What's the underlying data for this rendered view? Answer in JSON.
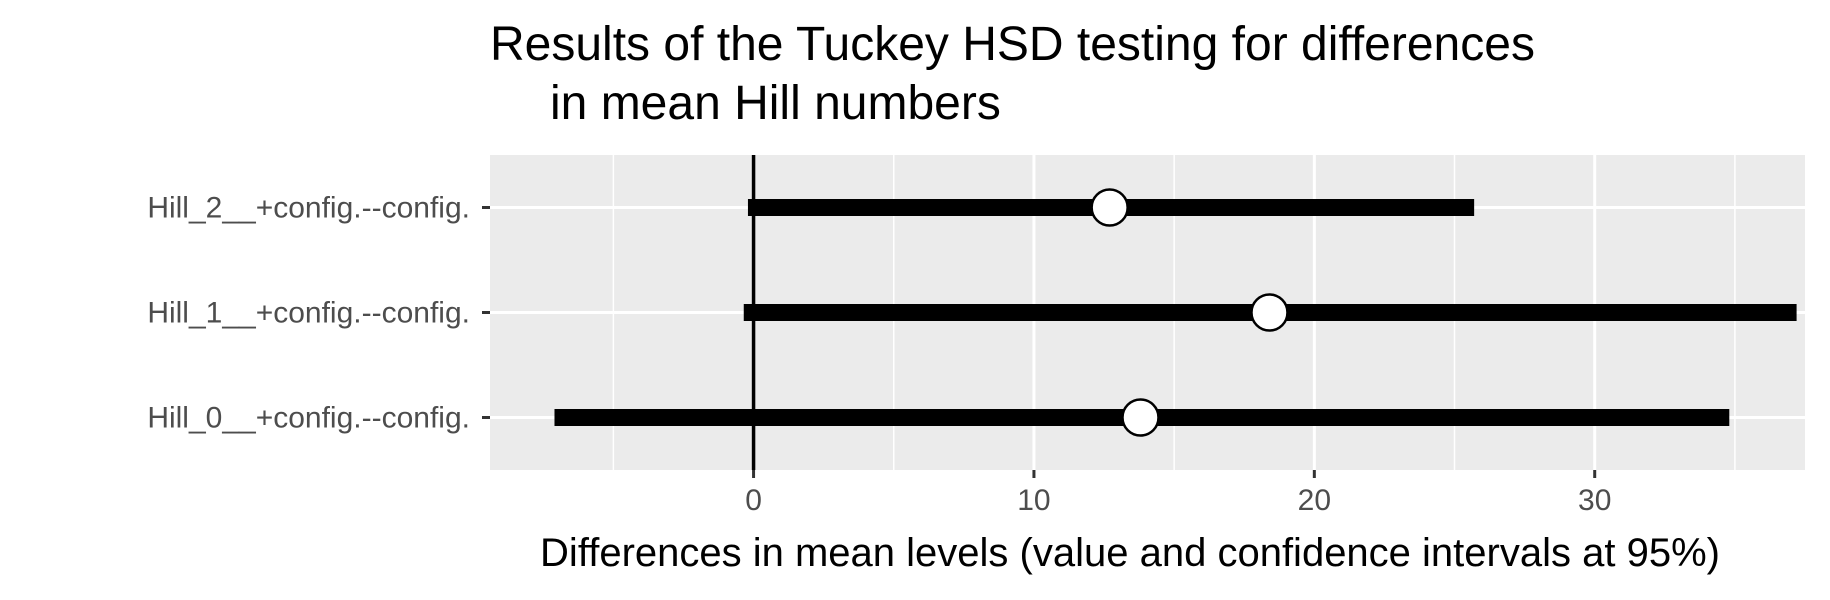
{
  "chart_data": {
    "type": "errorbar",
    "title": [
      "Results of the Tuckey HSD testing for differences",
      "in mean Hill numbers"
    ],
    "xlabel": "Differences in mean levels (value and confidence intervals at 95%)",
    "ylabel": "",
    "xlim": [
      -9.4,
      37.5
    ],
    "x_ticks": [
      0,
      10,
      20,
      30
    ],
    "x_tick_labels": [
      "0",
      "10",
      "20",
      "30"
    ],
    "grid": true,
    "reference_line": 0,
    "categories": [
      "Hill_2__+config.--config.",
      "Hill_1__+config.--config.",
      "Hill_0__+config.--config."
    ],
    "estimates": [
      12.7,
      18.4,
      13.8
    ],
    "lower": [
      -0.2,
      -0.35,
      -7.1
    ],
    "upper": [
      25.7,
      37.2,
      34.8
    ],
    "colors": {
      "panel": "#ebebeb",
      "grid": "#ffffff",
      "bar": "#000000",
      "point_fill": "#ffffff",
      "point_stroke": "#000000"
    }
  }
}
